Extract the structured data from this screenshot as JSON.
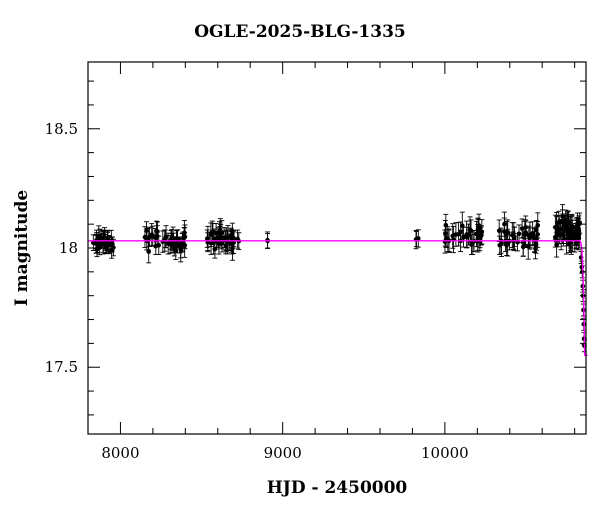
{
  "chart_data": {
    "type": "scatter",
    "title": "OGLE-2025-BLG-1335",
    "xlabel": "HJD - 2450000",
    "ylabel": "I magnitude",
    "xlim": [
      7800,
      10870
    ],
    "ylim": [
      18.78,
      17.22
    ],
    "y_inverted": true,
    "x_ticks": [
      8000,
      9000,
      10000
    ],
    "x_tick_labels": [
      "8000",
      "9000",
      "10000"
    ],
    "y_ticks": [
      17.5,
      18,
      18.5
    ],
    "y_tick_labels": [
      "17.5",
      "18",
      "18.5"
    ],
    "grid": false,
    "legend": "none",
    "colors": {
      "points": "#000000",
      "model": "#ff00ff"
    },
    "series": [
      {
        "kind": "observations",
        "clusters": [
          {
            "x_range": [
              7815,
              7975
            ],
            "y_center": 18.02,
            "y_spread": 0.05,
            "n": 32,
            "err": 0.035
          },
          {
            "x_range": [
              8150,
              8400
            ],
            "y_center": 18.03,
            "y_spread": 0.06,
            "n": 40,
            "err": 0.04
          },
          {
            "x_range": [
              8530,
              8730
            ],
            "y_center": 18.04,
            "y_spread": 0.06,
            "n": 40,
            "err": 0.04
          },
          {
            "x_range": [
              8905,
              8915
            ],
            "y_center": 18.03,
            "y_spread": 0.04,
            "n": 2,
            "err": 0.03
          },
          {
            "x_range": [
              9800,
              9850
            ],
            "y_center": 18.05,
            "y_spread": 0.04,
            "n": 3,
            "err": 0.03
          },
          {
            "x_range": [
              10000,
              10230
            ],
            "y_center": 18.05,
            "y_spread": 0.07,
            "n": 35,
            "err": 0.045
          },
          {
            "x_range": [
              10330,
              10580
            ],
            "y_center": 18.05,
            "y_spread": 0.07,
            "n": 40,
            "err": 0.045
          },
          {
            "x_range": [
              10680,
              10838
            ],
            "y_center": 18.07,
            "y_spread": 0.07,
            "n": 55,
            "err": 0.05
          }
        ],
        "rise_points": [
          {
            "x": 10840,
            "y": 17.96
          },
          {
            "x": 10844,
            "y": 17.92
          },
          {
            "x": 10847,
            "y": 17.9
          },
          {
            "x": 10850,
            "y": 17.84
          },
          {
            "x": 10852,
            "y": 17.8
          },
          {
            "x": 10854,
            "y": 17.74
          },
          {
            "x": 10856,
            "y": 17.68
          },
          {
            "x": 10858,
            "y": 17.62
          },
          {
            "x": 10860,
            "y": 17.59
          }
        ]
      },
      {
        "kind": "model",
        "baseline": 18.03,
        "peak_x": 10862,
        "peak_y": 17.55,
        "x_ramp_start": 10830
      }
    ]
  }
}
